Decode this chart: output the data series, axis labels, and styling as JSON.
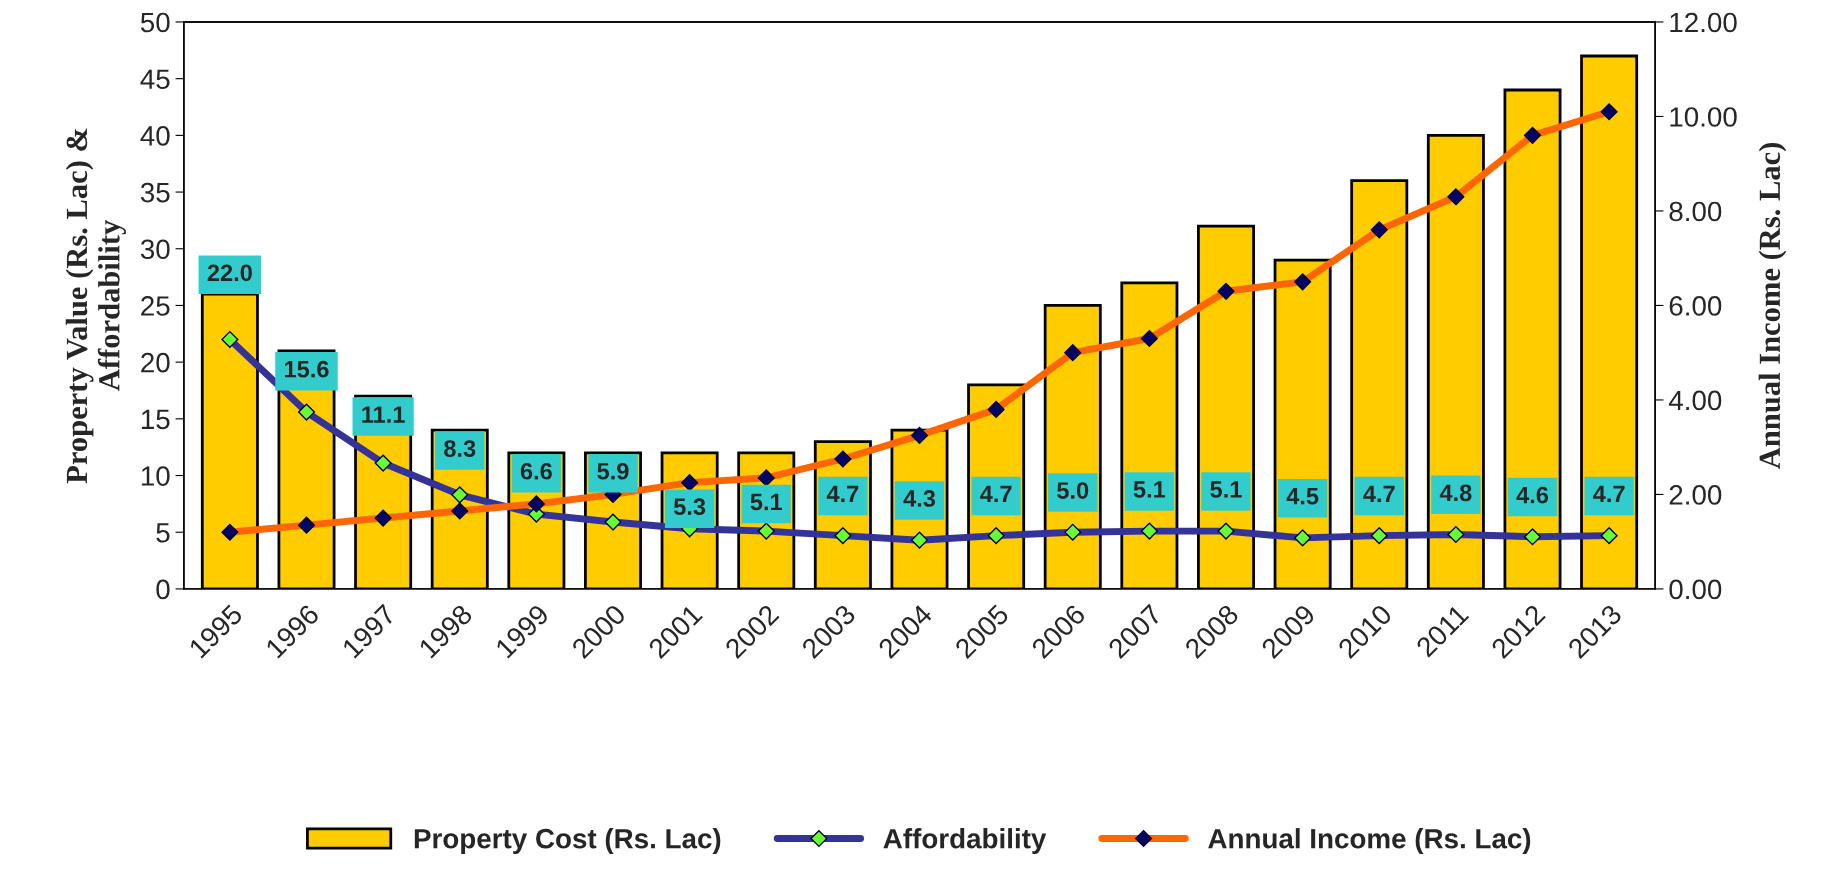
{
  "chart_data": {
    "type": "bar",
    "categories": [
      "1995",
      "1996",
      "1997",
      "1998",
      "1999",
      "2000",
      "2001",
      "2002",
      "2003",
      "2004",
      "2005",
      "2006",
      "2007",
      "2008",
      "2009",
      "2010",
      "2011",
      "2012",
      "2013"
    ],
    "ylabel": "Property Value (Rs. Lac) &\nAffordability",
    "y2label": "Annual Income (Rs. Lac)",
    "series": [
      {
        "name": "Property Cost (Rs. Lac)",
        "type": "bar",
        "color": "#ffcc00",
        "values": [
          26,
          21,
          17,
          14,
          12,
          12,
          12,
          12,
          13,
          14,
          18,
          25,
          27,
          32,
          29,
          36,
          40,
          44,
          47
        ]
      },
      {
        "name": "Affordability",
        "type": "line",
        "color": "#333399",
        "values": [
          22.0,
          15.6,
          11.1,
          8.3,
          6.6,
          5.9,
          5.3,
          5.1,
          4.7,
          4.3,
          4.7,
          5.0,
          5.1,
          5.1,
          4.5,
          4.7,
          4.8,
          4.6,
          4.7
        ],
        "value_labels": [
          "22.0",
          "15.6",
          "11.1",
          "8.3",
          "6.6",
          "5.9",
          "5.3",
          "5.1",
          "4.7",
          "4.3",
          "4.7",
          "5.0",
          "5.1",
          "5.1",
          "4.5",
          "4.7",
          "4.8",
          "4.6",
          "4.7"
        ]
      },
      {
        "name": "Annual Income (Rs. Lac)",
        "type": "line",
        "axis": "y2",
        "color": "#ff6600",
        "values": [
          1.2,
          1.35,
          1.5,
          1.65,
          1.8,
          2.0,
          2.25,
          2.35,
          2.75,
          3.25,
          3.8,
          5.0,
          5.3,
          6.3,
          6.5,
          7.6,
          8.3,
          9.6,
          10.1
        ]
      }
    ],
    "ylim": [
      0,
      50
    ],
    "yticks": [
      0,
      5,
      10,
      15,
      20,
      25,
      30,
      35,
      40,
      45,
      50
    ],
    "y2lim": [
      0,
      12
    ],
    "y2ticks": [
      {
        "value": 0,
        "label": "0.00"
      },
      {
        "value": 2,
        "label": "2.00"
      },
      {
        "value": 4,
        "label": "4.00"
      },
      {
        "value": 6,
        "label": "6.00"
      },
      {
        "value": 8,
        "label": "8.00"
      },
      {
        "value": 10,
        "label": "10.00"
      },
      {
        "value": 12,
        "label": "12.00"
      }
    ],
    "marker": "diamond",
    "grid": false,
    "legend": "bottom"
  }
}
